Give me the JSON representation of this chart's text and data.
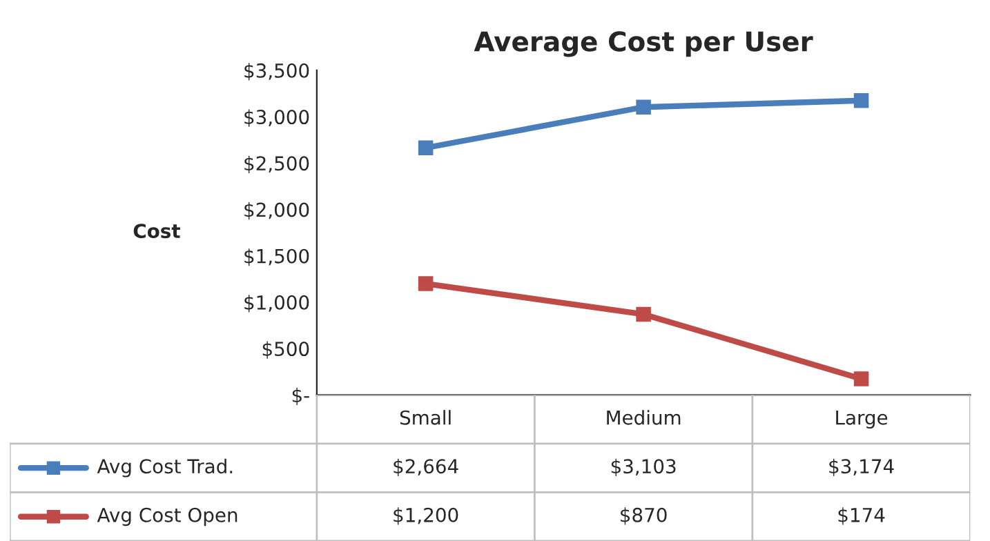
{
  "chart_data": {
    "type": "line",
    "title": "Average Cost per User",
    "ylabel": "Cost",
    "categories": [
      "Small",
      "Medium",
      "Large"
    ],
    "series": [
      {
        "name": "Avg Cost Trad.",
        "color": "#4a7ebb",
        "values": [
          2664,
          3103,
          3174
        ],
        "value_labels": [
          "$2,664",
          "$3,103",
          "$3,174"
        ]
      },
      {
        "name": "Avg Cost Open",
        "color": "#be4b48",
        "values": [
          1200,
          870,
          174
        ],
        "value_labels": [
          "$1,200",
          "$870",
          "$174"
        ]
      }
    ],
    "ylim": [
      0,
      3500
    ],
    "yticks": [
      {
        "value": 0,
        "label": "$-"
      },
      {
        "value": 500,
        "label": "$500"
      },
      {
        "value": 1000,
        "label": "$1,000"
      },
      {
        "value": 1500,
        "label": "$1,500"
      },
      {
        "value": 2000,
        "label": "$2,000"
      },
      {
        "value": 2500,
        "label": "$2,500"
      },
      {
        "value": 3000,
        "label": "$3,000"
      },
      {
        "value": 3500,
        "label": "$3,500"
      }
    ],
    "grid": false,
    "legend": "bottom",
    "marker": "square",
    "line_style": "solid"
  }
}
